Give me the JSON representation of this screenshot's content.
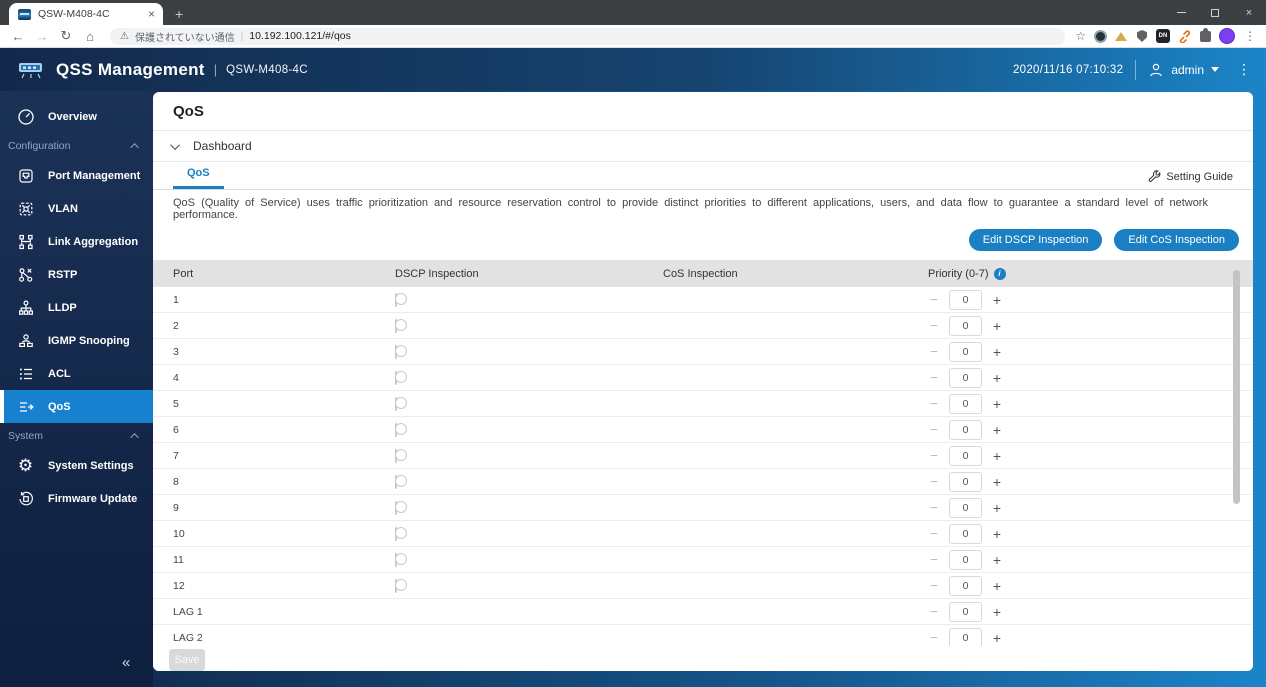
{
  "colors": {
    "accent_blue": "#1b7fc4",
    "toggle_on_green": "#3fd45f",
    "sidebar_active": "#1781cf",
    "header_gradient": [
      "#13294b",
      "#1b85c8"
    ]
  },
  "browser": {
    "tab_title": "QSW-M408-4C",
    "tab_close_glyph": "×",
    "new_tab_glyph": "+",
    "back_glyph": "←",
    "forward_glyph": "→",
    "reload_glyph": "↻",
    "home_glyph": "⌂",
    "warning_glyph": "⚠",
    "security_label": "保護されていない通信",
    "omni_separator": "|",
    "url": "10.192.100.121/#/qos",
    "bookmark_star_glyph": "☆",
    "extension_badge_text": "DN",
    "menu_dots_glyph": "⋮",
    "window_close_glyph": "×"
  },
  "app_header": {
    "title": "QSS Management",
    "separator": "|",
    "device": "QSW-M408-4C",
    "datetime": "2020/11/16 07:10:32",
    "user": "admin",
    "menu_dots_glyph": "⋮"
  },
  "sidebar": {
    "items": [
      {
        "label": "Overview"
      },
      {
        "label": "Configuration",
        "type": "section"
      },
      {
        "label": "Port Management"
      },
      {
        "label": "VLAN"
      },
      {
        "label": "Link Aggregation"
      },
      {
        "label": "RSTP"
      },
      {
        "label": "LLDP"
      },
      {
        "label": "IGMP Snooping"
      },
      {
        "label": "ACL"
      },
      {
        "label": "QoS",
        "active": true
      },
      {
        "label": "System",
        "type": "section"
      },
      {
        "label": "System Settings"
      },
      {
        "label": "Firmware Update"
      }
    ],
    "gear_glyph": "⚙",
    "collapse_glyph": "«"
  },
  "main": {
    "page_title": "QoS",
    "accordion_label": "Dashboard",
    "tab_label": "QoS",
    "setting_guide_label": "Setting Guide",
    "description": "QoS (Quality of Service) uses traffic prioritization and resource reservation control to provide distinct priorities to different applications, users, and data flow to guarantee a standard level of network performance.",
    "edit_dscp_button": "Edit DSCP Inspection",
    "edit_cos_button": "Edit CoS Inspection",
    "table": {
      "headers": {
        "port": "Port",
        "dscp": "DSCP Inspection",
        "cos": "CoS Inspection",
        "priority": "Priority (0-7)"
      },
      "priority_info_glyph": "i",
      "decrease_glyph": "−",
      "increase_glyph": "+",
      "rows": [
        {
          "port": "1",
          "dscp": false,
          "cos": true,
          "priority": "0"
        },
        {
          "port": "2",
          "dscp": false,
          "cos": true,
          "priority": "0"
        },
        {
          "port": "3",
          "dscp": false,
          "cos": true,
          "priority": "0"
        },
        {
          "port": "4",
          "dscp": false,
          "cos": true,
          "priority": "0"
        },
        {
          "port": "5",
          "dscp": false,
          "cos": true,
          "priority": "0"
        },
        {
          "port": "6",
          "dscp": false,
          "cos": true,
          "priority": "0"
        },
        {
          "port": "7",
          "dscp": false,
          "cos": true,
          "priority": "0"
        },
        {
          "port": "8",
          "dscp": false,
          "cos": true,
          "priority": "0"
        },
        {
          "port": "9",
          "dscp": false,
          "cos": true,
          "priority": "0"
        },
        {
          "port": "10",
          "dscp": false,
          "cos": true,
          "priority": "0"
        },
        {
          "port": "11",
          "dscp": false,
          "cos": true,
          "priority": "0"
        },
        {
          "port": "12",
          "dscp": false,
          "cos": true,
          "priority": "0"
        },
        {
          "port": "LAG 1",
          "priority": "0"
        },
        {
          "port": "LAG 2",
          "priority": "0"
        }
      ]
    },
    "save_button": "Save"
  }
}
